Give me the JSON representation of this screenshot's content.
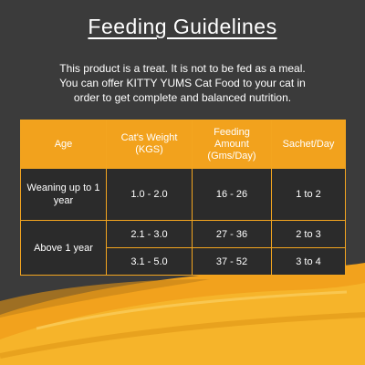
{
  "title": "Feeding Guidelines",
  "intro_lines": [
    "This product is a treat. It is not to be fed as a meal.",
    "You can offer KITTY YUMS Cat Food to your cat in",
    "order to get complete and balanced nutrition."
  ],
  "table": {
    "headers": [
      "Age",
      "Cat's Weight (KGS)",
      "Feeding Amount (Gms/Day)",
      "Sachet/Day"
    ],
    "rows": [
      {
        "age": "Weaning up to 1 year",
        "weight": "1.0 - 2.0",
        "amount": "16 - 26",
        "sachet": "1 to 2"
      },
      {
        "age": "Above 1 year",
        "weight": "2.1 - 3.0",
        "amount": "27 - 36",
        "sachet": "2 to 3"
      },
      {
        "weight": "3.1 - 5.0",
        "amount": "37 - 52",
        "sachet": "3 to 4"
      }
    ]
  },
  "colors": {
    "background": "#3b3b3b",
    "accent_orange": "#f2a21d",
    "table_cell": "#2b2b2b",
    "text": "#ffffff"
  }
}
